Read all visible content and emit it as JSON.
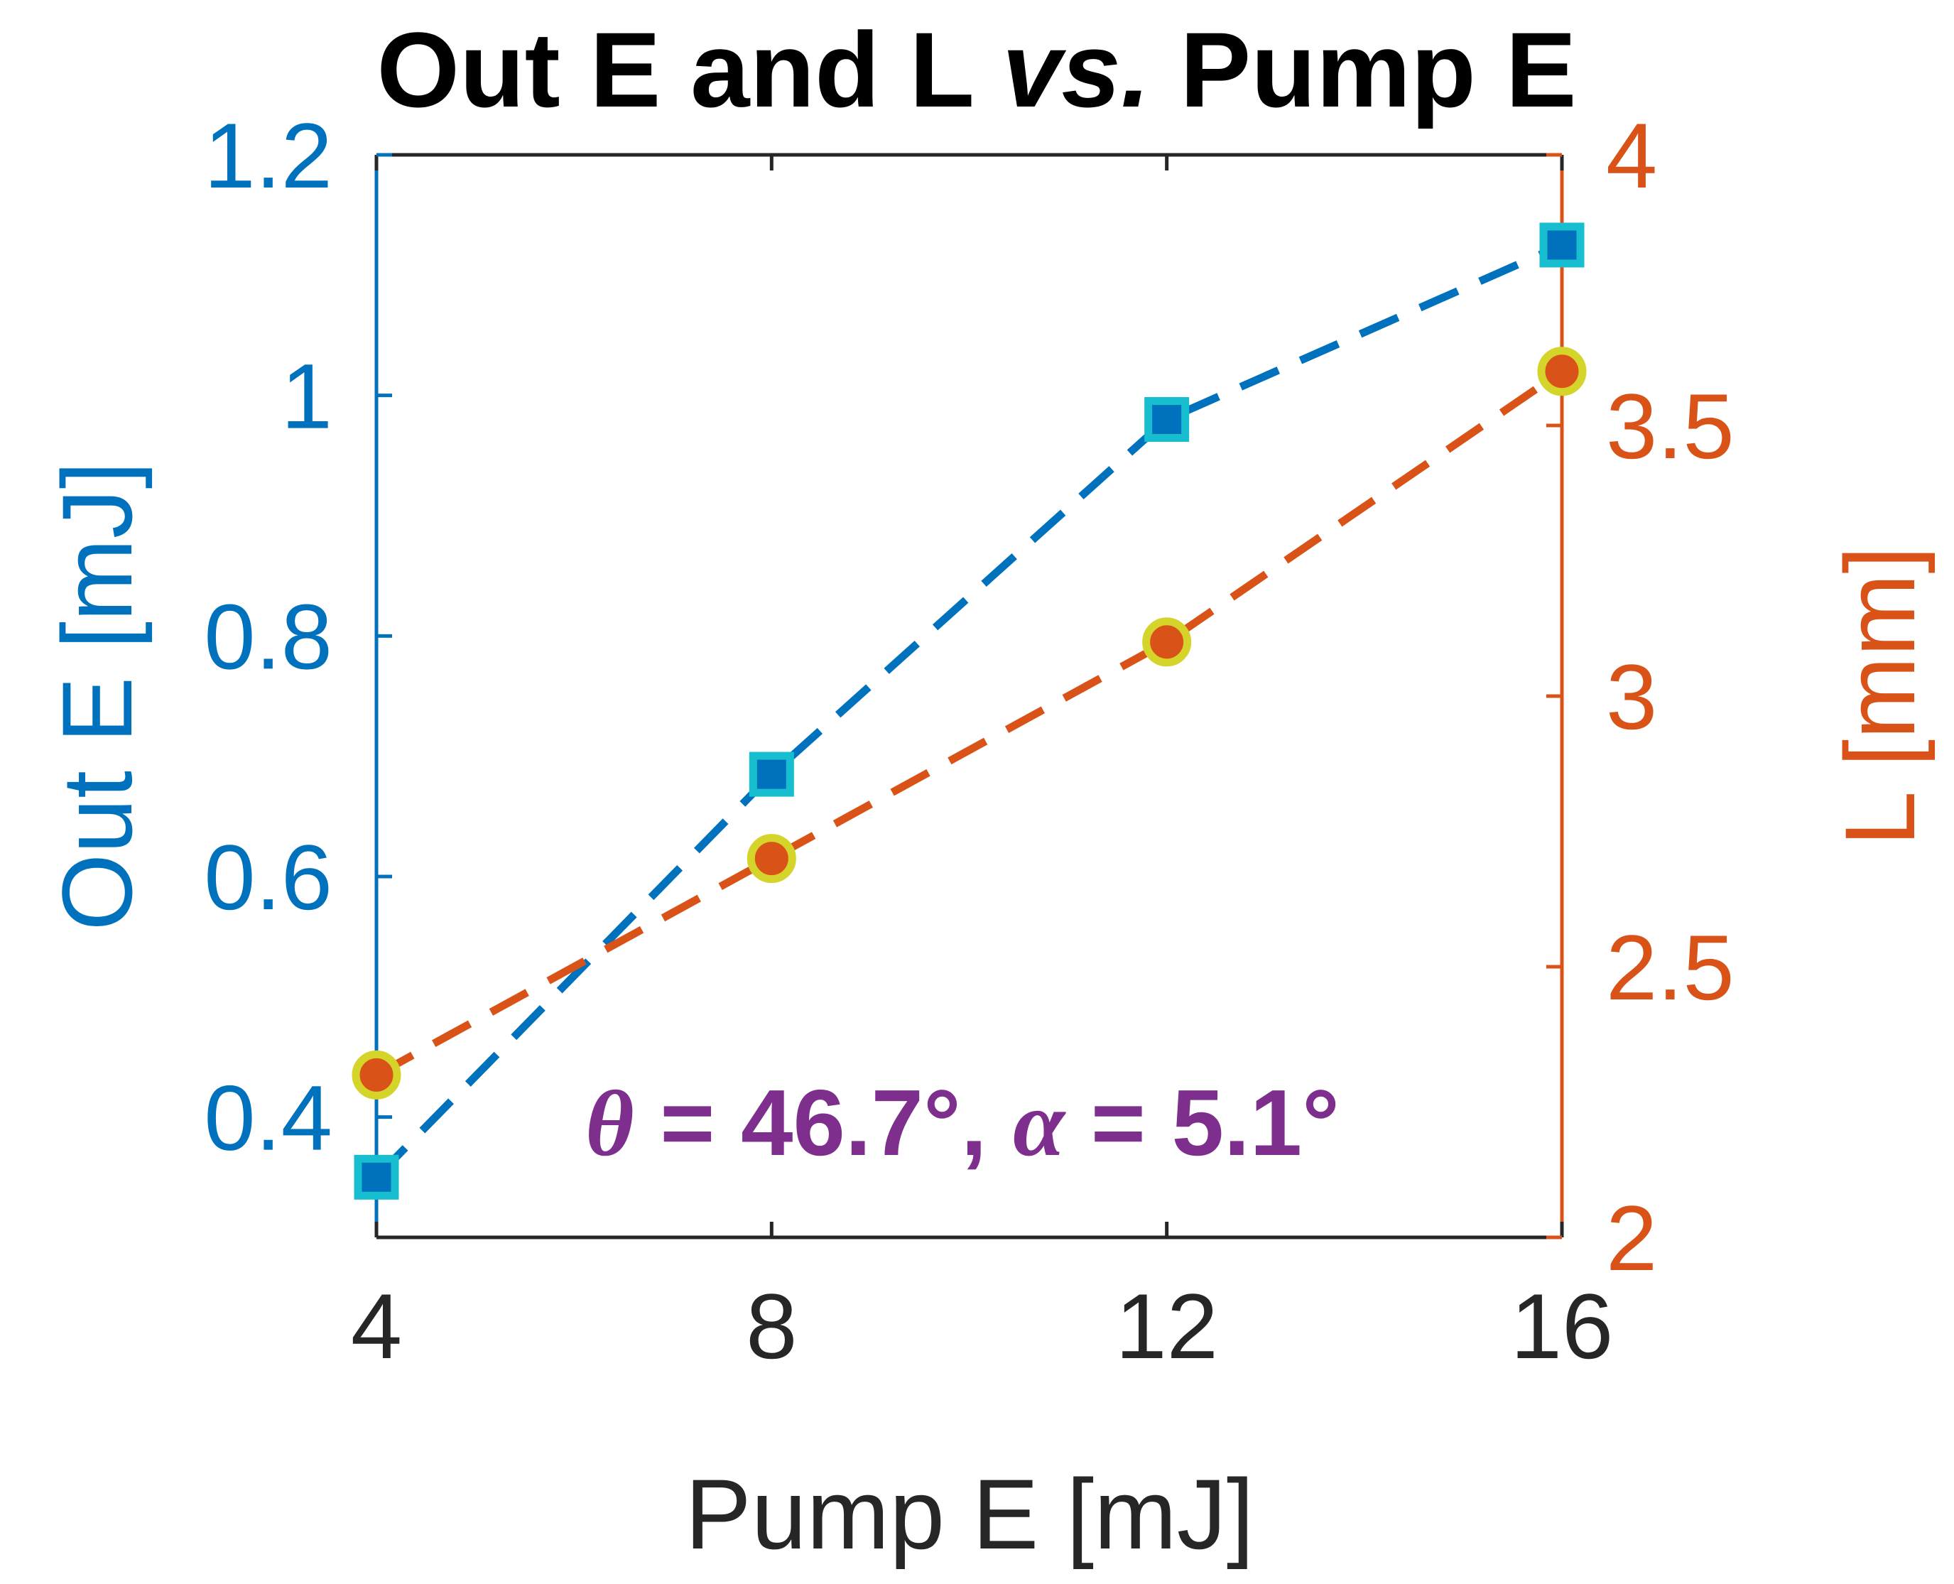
{
  "chart_data": {
    "type": "line",
    "title": {
      "prefix": "Out E and L ",
      "italic": "vs.",
      "suffix": " Pump E"
    },
    "xlabel": "Pump E [mJ]",
    "ylabel_left": "Out E [mJ]",
    "ylabel_right": "L [mm]",
    "x": [
      4,
      8,
      12,
      16
    ],
    "xlim": [
      4,
      16
    ],
    "x_ticks": [
      "4",
      "8",
      "12",
      "16"
    ],
    "ylim_left": [
      0.3,
      1.2
    ],
    "y_ticks_left": [
      "0.4",
      "0.6",
      "0.8",
      "1",
      "1.2"
    ],
    "ylim_right": [
      2,
      4
    ],
    "y_ticks_right": [
      "2",
      "2.5",
      "3",
      "3.5",
      "4"
    ],
    "grid": false,
    "series": [
      {
        "name": "Out E",
        "axis": "left",
        "values": [
          0.35,
          0.685,
          0.98,
          1.125
        ],
        "line_style": "dashed",
        "marker": "square",
        "color": "#0072BD",
        "marker_edge": "#17BECF"
      },
      {
        "name": "L",
        "axis": "right",
        "values": [
          2.3,
          2.7,
          3.1,
          3.6
        ],
        "line_style": "dashed",
        "marker": "circle",
        "color": "#D95319",
        "marker_edge": "#D4D42A"
      }
    ],
    "annotation": {
      "theta_symbol": "θ",
      "theta_value": " = 46.7°, ",
      "alpha_symbol": "α",
      "alpha_value": " = 5.1°",
      "color": "#7E2F8E"
    },
    "colors": {
      "left_axis": "#0072BD",
      "right_axis": "#D95319",
      "x_axis": "#262626",
      "title": "#000000"
    }
  }
}
